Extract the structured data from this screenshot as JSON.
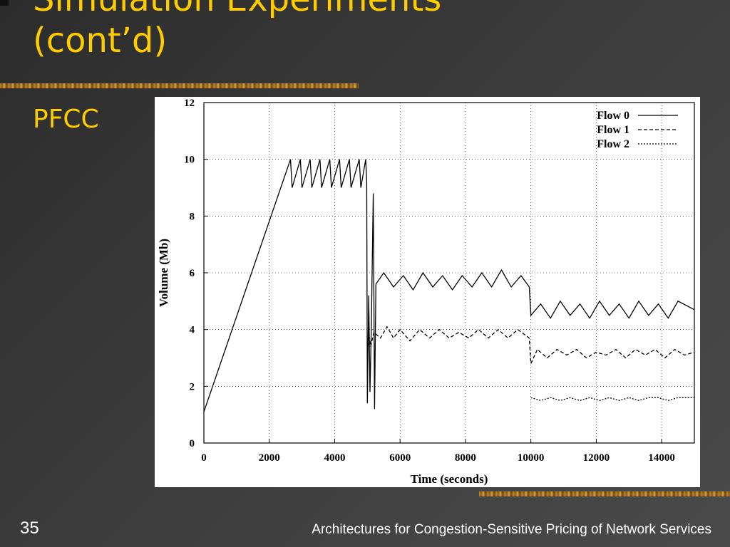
{
  "slide": {
    "title_line1": "Simulation Experiments",
    "title_line2": "(cont’d)",
    "subtitle": "PFCC",
    "page_number": "35",
    "footer": "Architectures for Congestion-Sensitive Pricing of Network Services"
  },
  "chart_data": {
    "type": "line",
    "title": "",
    "xlabel": "Time (seconds)",
    "ylabel": "Volume (Mb)",
    "xlim": [
      0,
      15000
    ],
    "ylim": [
      0,
      12
    ],
    "x_ticks": [
      "0",
      "2000",
      "4000",
      "6000",
      "8000",
      "10000",
      "12000",
      "14000"
    ],
    "y_ticks": [
      "0",
      "2",
      "4",
      "6",
      "8",
      "10",
      "12"
    ],
    "grid": true,
    "legend_position": "top-right",
    "series": [
      {
        "name": "Flow 0",
        "style": "solid",
        "points": [
          [
            0,
            1.1
          ],
          [
            2650,
            10.0
          ],
          [
            2700,
            9.0
          ],
          [
            2950,
            10.0
          ],
          [
            3000,
            9.0
          ],
          [
            3250,
            10.0
          ],
          [
            3300,
            9.0
          ],
          [
            3550,
            10.0
          ],
          [
            3600,
            9.0
          ],
          [
            3850,
            10.0
          ],
          [
            3900,
            9.0
          ],
          [
            4150,
            10.0
          ],
          [
            4200,
            9.0
          ],
          [
            4450,
            10.0
          ],
          [
            4500,
            9.0
          ],
          [
            4750,
            10.0
          ],
          [
            4800,
            9.0
          ],
          [
            4950,
            10.0
          ],
          [
            4980,
            9.2
          ],
          [
            5000,
            1.4
          ],
          [
            5040,
            5.2
          ],
          [
            5080,
            1.8
          ],
          [
            5120,
            4.0
          ],
          [
            5180,
            8.8
          ],
          [
            5220,
            1.2
          ],
          [
            5260,
            5.6
          ],
          [
            5500,
            6.0
          ],
          [
            5800,
            5.5
          ],
          [
            6100,
            5.9
          ],
          [
            6400,
            5.4
          ],
          [
            6700,
            6.0
          ],
          [
            7000,
            5.5
          ],
          [
            7300,
            5.9
          ],
          [
            7600,
            5.4
          ],
          [
            7900,
            5.9
          ],
          [
            8200,
            5.5
          ],
          [
            8500,
            6.0
          ],
          [
            8800,
            5.5
          ],
          [
            9100,
            6.1
          ],
          [
            9400,
            5.5
          ],
          [
            9700,
            5.9
          ],
          [
            9950,
            5.5
          ],
          [
            10000,
            4.5
          ],
          [
            10300,
            4.9
          ],
          [
            10600,
            4.4
          ],
          [
            10900,
            5.0
          ],
          [
            11200,
            4.5
          ],
          [
            11500,
            4.9
          ],
          [
            11800,
            4.4
          ],
          [
            12100,
            5.0
          ],
          [
            12400,
            4.5
          ],
          [
            12700,
            4.9
          ],
          [
            13000,
            4.4
          ],
          [
            13300,
            5.0
          ],
          [
            13600,
            4.5
          ],
          [
            13900,
            4.9
          ],
          [
            14200,
            4.4
          ],
          [
            14500,
            5.0
          ],
          [
            15000,
            4.7
          ]
        ]
      },
      {
        "name": "Flow 1",
        "style": "dashed",
        "points": [
          [
            5000,
            3.0
          ],
          [
            5050,
            3.8
          ],
          [
            5100,
            3.4
          ],
          [
            5200,
            3.9
          ],
          [
            5400,
            3.7
          ],
          [
            5600,
            4.1
          ],
          [
            5800,
            3.7
          ],
          [
            6000,
            4.0
          ],
          [
            6300,
            3.6
          ],
          [
            6600,
            4.0
          ],
          [
            6900,
            3.7
          ],
          [
            7200,
            4.0
          ],
          [
            7500,
            3.7
          ],
          [
            7800,
            3.9
          ],
          [
            8100,
            3.7
          ],
          [
            8400,
            4.0
          ],
          [
            8700,
            3.7
          ],
          [
            9000,
            4.0
          ],
          [
            9300,
            3.7
          ],
          [
            9600,
            4.0
          ],
          [
            9950,
            3.7
          ],
          [
            10000,
            2.8
          ],
          [
            10200,
            3.3
          ],
          [
            10500,
            3.0
          ],
          [
            10800,
            3.3
          ],
          [
            11100,
            3.1
          ],
          [
            11400,
            3.3
          ],
          [
            11700,
            3.0
          ],
          [
            12000,
            3.2
          ],
          [
            12300,
            3.1
          ],
          [
            12600,
            3.3
          ],
          [
            12900,
            3.0
          ],
          [
            13200,
            3.3
          ],
          [
            13500,
            3.1
          ],
          [
            13800,
            3.3
          ],
          [
            14100,
            3.0
          ],
          [
            14400,
            3.3
          ],
          [
            14700,
            3.1
          ],
          [
            15000,
            3.2
          ]
        ]
      },
      {
        "name": "Flow 2",
        "style": "dotted",
        "points": [
          [
            10000,
            1.6
          ],
          [
            10300,
            1.5
          ],
          [
            10600,
            1.6
          ],
          [
            10900,
            1.5
          ],
          [
            11200,
            1.6
          ],
          [
            11500,
            1.5
          ],
          [
            11800,
            1.6
          ],
          [
            12100,
            1.5
          ],
          [
            12400,
            1.6
          ],
          [
            12700,
            1.5
          ],
          [
            13000,
            1.6
          ],
          [
            13300,
            1.5
          ],
          [
            13600,
            1.6
          ],
          [
            13900,
            1.6
          ],
          [
            14200,
            1.5
          ],
          [
            14500,
            1.6
          ],
          [
            14800,
            1.6
          ],
          [
            15000,
            1.6
          ]
        ]
      }
    ]
  }
}
